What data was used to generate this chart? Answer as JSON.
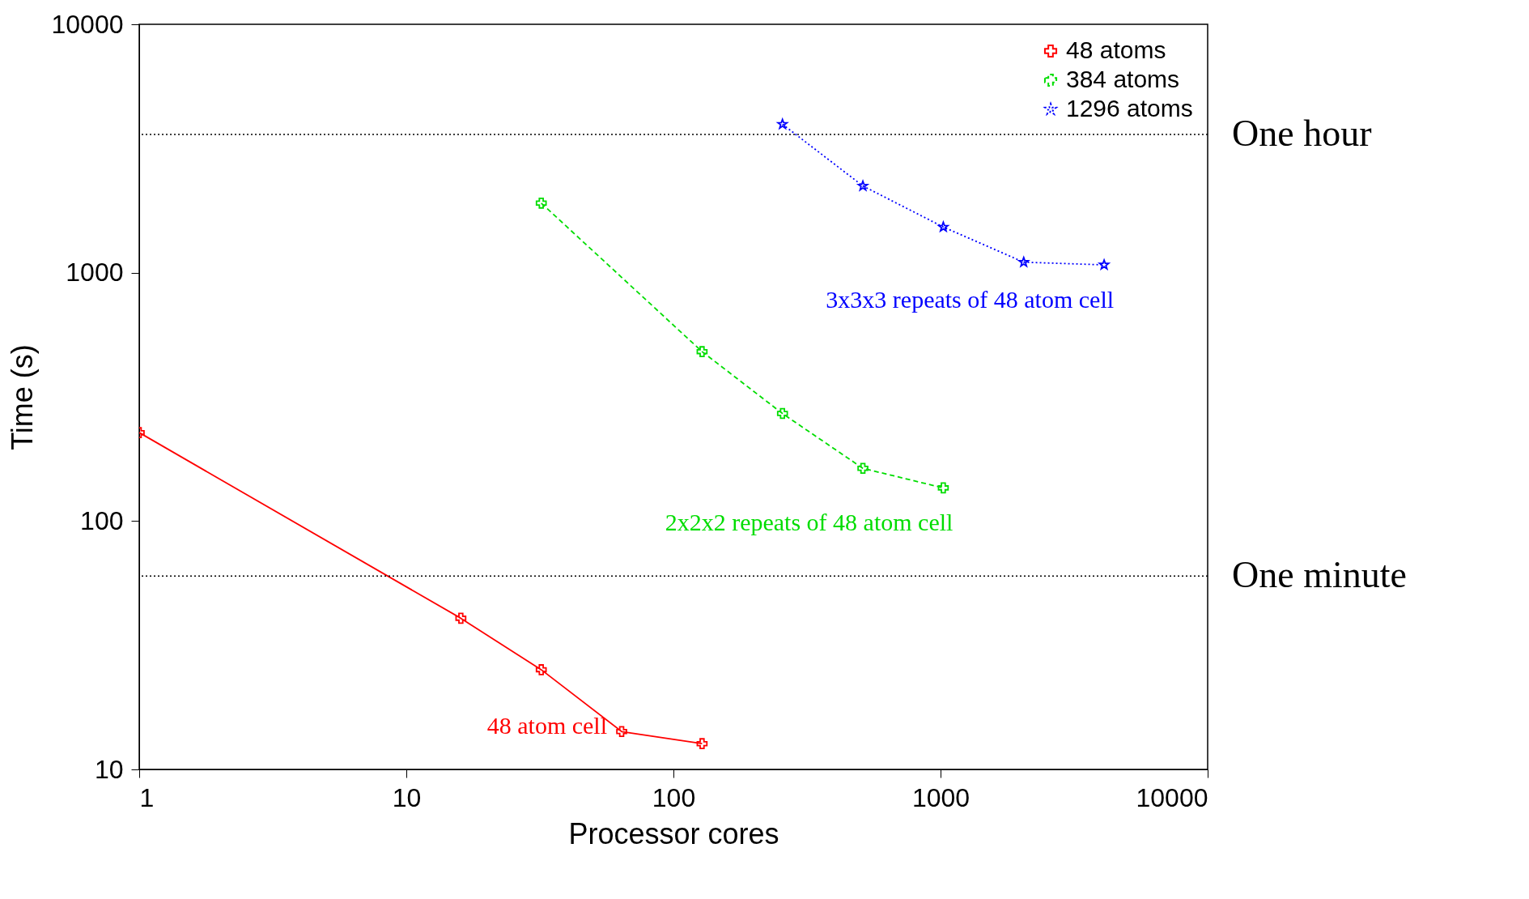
{
  "chart_data": {
    "type": "line",
    "xlabel": "Processor cores",
    "ylabel": "Time (s)",
    "log": "xy",
    "xlim": [
      1,
      10000
    ],
    "ylim": [
      10,
      10000
    ],
    "xticks": [
      1,
      10,
      100,
      1000,
      10000
    ],
    "yticks": [
      10,
      100,
      1000,
      10000
    ],
    "legend": "top right",
    "grid": false,
    "series": [
      {
        "name": "48 atoms",
        "color": "#ff0000",
        "line_style": "solid",
        "marker": "cross",
        "x": [
          1,
          16,
          32,
          64,
          128
        ],
        "values": [
          227,
          40.6,
          25.2,
          14.2,
          12.7
        ]
      },
      {
        "name": "384 atoms",
        "color": "#00dd00",
        "line_style": "dashed",
        "marker": "cross",
        "x": [
          32,
          128,
          256,
          512,
          1024
        ],
        "values": [
          1905,
          481,
          271,
          163,
          136
        ]
      },
      {
        "name": "1296 atoms",
        "color": "#0000ff",
        "line_style": "dotted",
        "marker": "star",
        "x": [
          256,
          512,
          1024,
          2048,
          4096
        ],
        "values": [
          3960,
          2234,
          1527,
          1102,
          1075
        ]
      }
    ],
    "ref_lines": [
      {
        "axis": "y",
        "value": 3600,
        "label": "One hour",
        "line_style": "dotted",
        "color": "#000000"
      },
      {
        "axis": "y",
        "value": 60,
        "label": "One minute",
        "line_style": "dotted",
        "color": "#000000"
      }
    ],
    "annotations": [
      "3x3x3 repeats of 48 atom cell",
      "2x2x2 repeats of 48 atom cell",
      "48 atom cell"
    ]
  }
}
